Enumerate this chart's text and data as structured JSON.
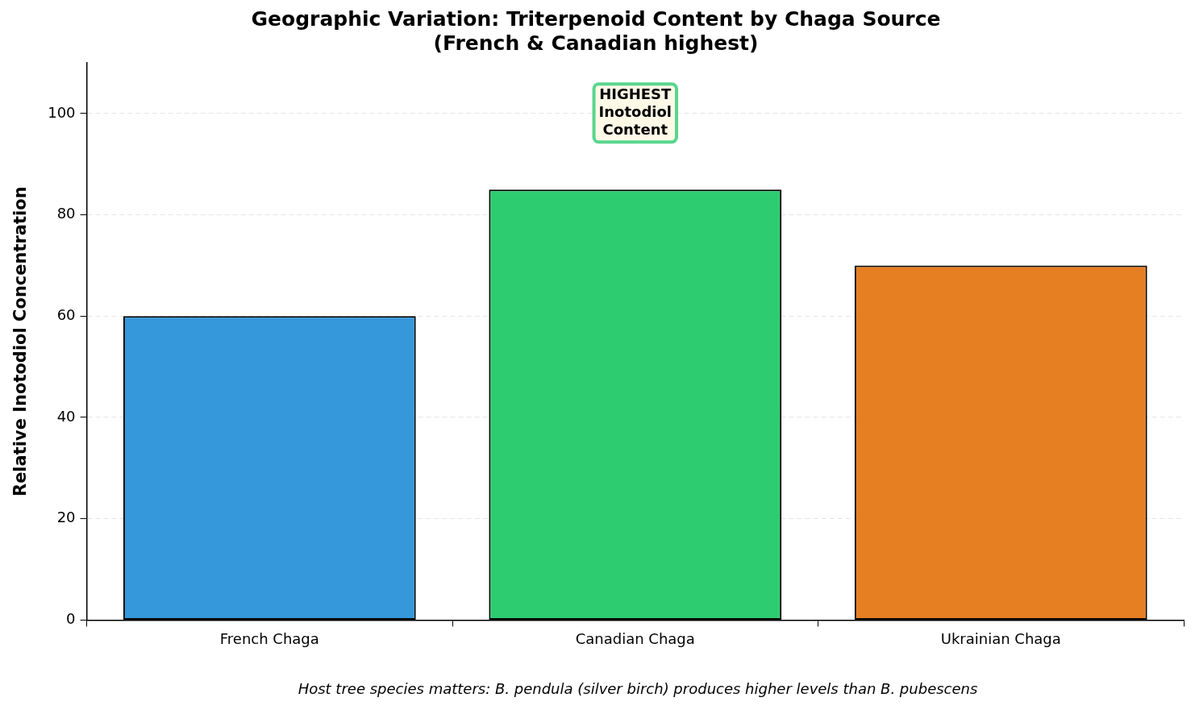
{
  "chart_data": {
    "type": "bar",
    "title": "Geographic Variation: Triterpenoid Content by Chaga Source\n(French & Canadian highest)",
    "ylabel": "Relative Inotodiol Concentration",
    "categories": [
      "French Chaga",
      "Canadian Chaga",
      "Ukrainian Chaga"
    ],
    "values": [
      60,
      85,
      70
    ],
    "colors": [
      "#3498db",
      "#2ecc71",
      "#e67e22"
    ],
    "ylim": [
      0,
      110
    ],
    "yticks": [
      0,
      20,
      40,
      60,
      80,
      100
    ],
    "grid": "y",
    "legend": false,
    "annotations": [
      "HIGHEST\nInotodiol\nContent",
      "Host tree species matters: B. pendula (silver birch) produces higher levels than B. pubescens"
    ]
  }
}
